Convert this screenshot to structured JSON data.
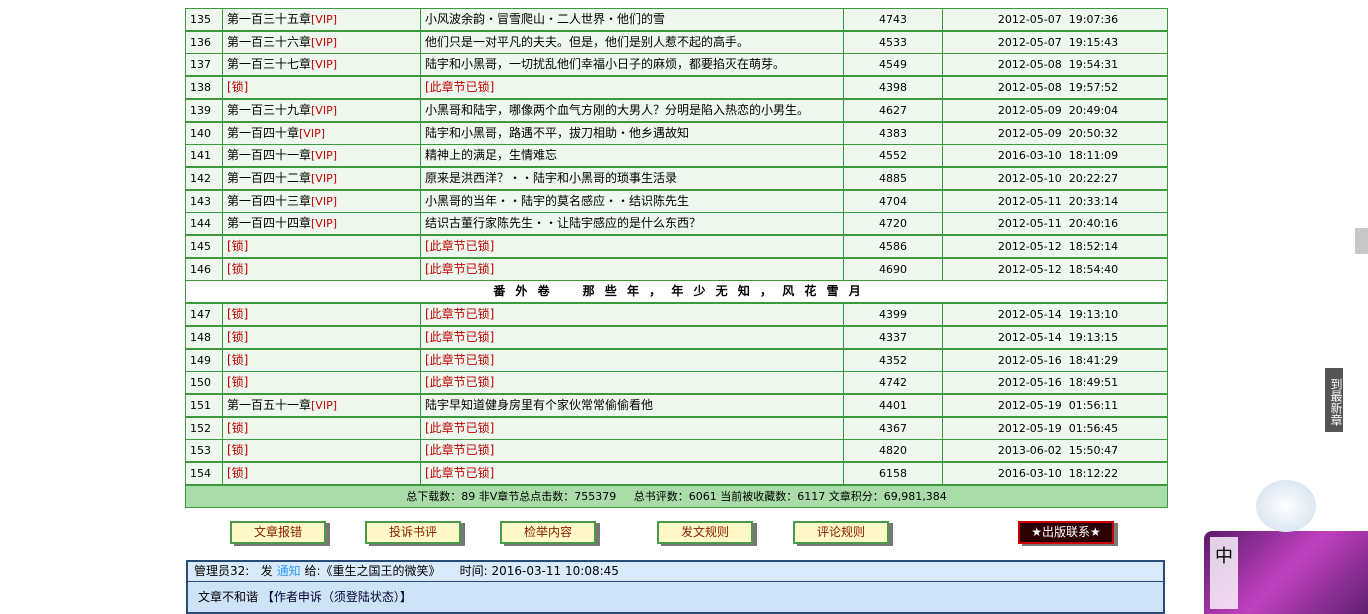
{
  "rows": [
    {
      "no": "135",
      "chapter": "第一百三十五章",
      "tag": "[VIP]",
      "summary": "小风波余韵・冒雪爬山・二人世界・他们的雪",
      "clicks": "4743",
      "date": "2012-05-07  19:07:36"
    },
    {
      "no": "136",
      "chapter": "第一百三十六章",
      "tag": "[VIP]",
      "summary": "他们只是一对平凡的夫夫。但是，他们是别人惹不起的高手。",
      "clicks": "4533",
      "date": "2012-05-07  19:15:43"
    },
    {
      "no": "137",
      "chapter": "第一百三十七章",
      "tag": "[VIP]",
      "summary": "陆宇和小黑哥，一切扰乱他们幸福小日子的麻烦，都要掐灭在萌芽。",
      "clicks": "4549",
      "date": "2012-05-08  19:54:31"
    },
    {
      "no": "138",
      "chapter": "[锁]",
      "summary": "[此章节已锁]",
      "clicks": "4398",
      "date": "2012-05-08  19:57:52"
    },
    {
      "no": "139",
      "chapter": "第一百三十九章",
      "tag": "[VIP]",
      "summary": "小黑哥和陆宇，哪像两个血气方刚的大男人？分明是陷入热恋的小男生。",
      "clicks": "4627",
      "date": "2012-05-09  20:49:04"
    },
    {
      "no": "140",
      "chapter": "第一百四十章",
      "tag": "[VIP]",
      "summary": "陆宇和小黑哥，路遇不平，拔刀相助・他乡遇故知",
      "clicks": "4383",
      "date": "2012-05-09  20:50:32"
    },
    {
      "no": "141",
      "chapter": "第一百四十一章",
      "tag": "[VIP]",
      "summary": "精神上的满足，生情难忘",
      "clicks": "4552",
      "date": "2016-03-10  18:11:09"
    },
    {
      "no": "142",
      "chapter": "第一百四十二章",
      "tag": "[VIP]",
      "summary": "原来是洪西洋？・・陆宇和小黑哥的琐事生活录",
      "clicks": "4885",
      "date": "2012-05-10  20:22:27"
    },
    {
      "no": "143",
      "chapter": "第一百四十三章",
      "tag": "[VIP]",
      "summary": "小黑哥的当年・・陆宇的莫名感应・・结识陈先生",
      "clicks": "4704",
      "date": "2012-05-11  20:33:14"
    },
    {
      "no": "144",
      "chapter": "第一百四十四章",
      "tag": "[VIP]",
      "summary": "结识古董行家陈先生・・让陆宇感应的是什么东西？",
      "clicks": "4720",
      "date": "2012-05-11  20:40:16"
    },
    {
      "no": "145",
      "chapter": "[锁]",
      "summary": "[此章节已锁]",
      "clicks": "4586",
      "date": "2012-05-12  18:52:14"
    },
    {
      "no": "146",
      "chapter": "[锁]",
      "summary": "[此章节已锁]",
      "clicks": "4690",
      "date": "2012-05-12  18:54:40"
    },
    {
      "heading": "番 外 卷　　那 些 年 ， 年 少 无 知 ， 风 花 雪 月"
    },
    {
      "no": "147",
      "chapter": "[锁]",
      "summary": "[此章节已锁]",
      "clicks": "4399",
      "date": "2012-05-14  19:13:10"
    },
    {
      "no": "148",
      "chapter": "[锁]",
      "summary": "[此章节已锁]",
      "clicks": "4337",
      "date": "2012-05-14  19:13:15"
    },
    {
      "no": "149",
      "chapter": "[锁]",
      "summary": "[此章节已锁]",
      "clicks": "4352",
      "date": "2012-05-16  18:41:29"
    },
    {
      "no": "150",
      "chapter": "[锁]",
      "summary": "[此章节已锁]",
      "clicks": "4742",
      "date": "2012-05-16  18:49:51"
    },
    {
      "no": "151",
      "chapter": "第一百五十一章",
      "tag": "[VIP]",
      "summary": "陆宇早知道健身房里有个家伙常常偷偷看他",
      "clicks": "4401",
      "date": "2012-05-19  01:56:11"
    },
    {
      "no": "152",
      "chapter": "[锁]",
      "summary": "[此章节已锁]",
      "clicks": "4367",
      "date": "2012-05-19  01:56:45"
    },
    {
      "no": "153",
      "chapter": "[锁]",
      "summary": "[此章节已锁]",
      "clicks": "4820",
      "date": "2013-06-02  15:50:47"
    },
    {
      "no": "154",
      "chapter": "[锁]",
      "summary": "[此章节已锁]",
      "clicks": "6158",
      "date": "2016-03-10  18:12:22"
    }
  ],
  "stats": [
    "总下载数：89 非V章节总点击数：755379",
    "总书评数：6061 当前被收藏数：6117 文章积分：69,981,384"
  ],
  "buttons": [
    "文章报错",
    "投诉书评",
    "检举内容",
    "发文规则",
    "评论规则",
    "★出版联系★"
  ],
  "notice": {
    "admin": "管理员32:",
    "send": "发",
    "kind": "通知",
    "to": "给:《重生之国王的微笑》",
    "time": "时间: 2016-03-11 10:08:45",
    "text": "文章不和谐",
    "link": "【作者申诉（须登陆状态）】"
  },
  "side": {
    "latest": "到最新章",
    "ime": "中"
  }
}
